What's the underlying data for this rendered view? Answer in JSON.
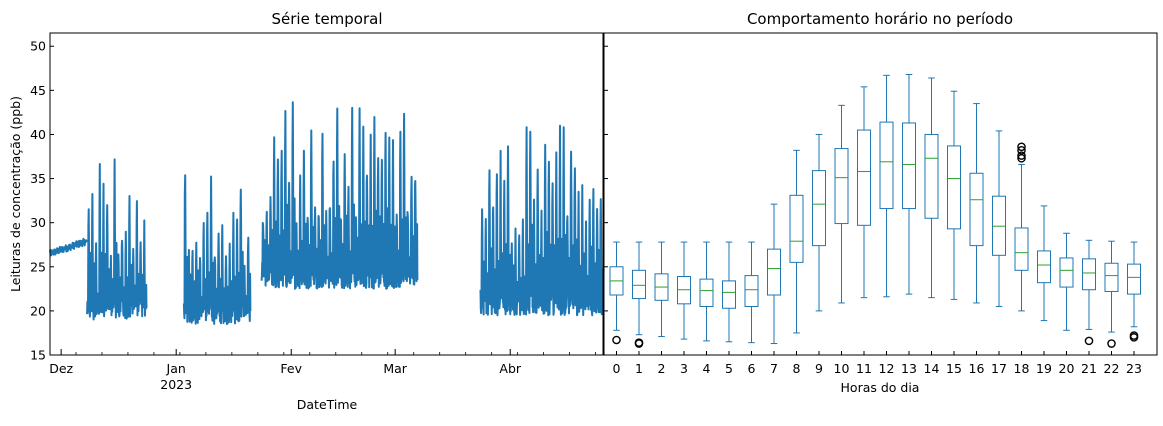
{
  "chart_data": [
    {
      "type": "line",
      "title": "Série temporal",
      "xlabel": "DateTime",
      "ylabel": "Leituras de concentração (ppb)",
      "ylim": [
        15,
        51.5
      ],
      "yticks": [
        15,
        20,
        25,
        30,
        35,
        40,
        45,
        50
      ],
      "xlim": [
        "2022-11-28",
        "2023-04-26"
      ],
      "xticks": [
        {
          "date": "2022-12-01",
          "label": "Dez",
          "sublabel": ""
        },
        {
          "date": "2023-01-01",
          "label": "Jan",
          "sublabel": "2023"
        },
        {
          "date": "2023-02-01",
          "label": "Fev",
          "sublabel": ""
        },
        {
          "date": "2023-03-01",
          "label": "Mar",
          "sublabel": ""
        },
        {
          "date": "2023-04-01",
          "label": "Abr",
          "sublabel": ""
        }
      ],
      "color": "#1f77b4",
      "segments": [
        {
          "start": "2022-11-28",
          "end": "2022-12-08",
          "base": 26.5,
          "amp": 0.4,
          "rise": 1.4
        },
        {
          "start": "2022-12-08",
          "end": "2022-12-24",
          "base": 20.5,
          "amp": 16,
          "rise": 0
        },
        {
          "start": "2023-01-03",
          "end": "2023-01-21",
          "base": 20,
          "amp": 17,
          "rise": 0
        },
        {
          "start": "2023-01-24",
          "end": "2023-03-07",
          "base": 24,
          "amp": 19,
          "rise": 0
        },
        {
          "start": "2023-03-24",
          "end": "2023-04-26",
          "base": 21,
          "amp": 21,
          "rise": 0
        }
      ]
    },
    {
      "type": "box",
      "title": "Comportamento horário no período",
      "xlabel": "Horas do dia",
      "ylabel": "",
      "ylim": [
        15,
        51.5
      ],
      "box_color": "#1f77b4",
      "median_color": "#2ca02c",
      "categories": [
        "0",
        "1",
        "2",
        "3",
        "4",
        "5",
        "6",
        "7",
        "8",
        "9",
        "10",
        "11",
        "12",
        "13",
        "14",
        "15",
        "16",
        "17",
        "18",
        "19",
        "20",
        "21",
        "22",
        "23"
      ],
      "boxes": [
        {
          "whislo": 17.8,
          "q1": 21.8,
          "med": 23.4,
          "q3": 25.0,
          "whishi": 27.8,
          "fliers": [
            16.7
          ]
        },
        {
          "whislo": 17.3,
          "q1": 21.4,
          "med": 22.9,
          "q3": 24.6,
          "whishi": 27.8,
          "fliers": [
            16.4,
            16.3
          ]
        },
        {
          "whislo": 17.1,
          "q1": 21.2,
          "med": 22.7,
          "q3": 24.2,
          "whishi": 27.8,
          "fliers": []
        },
        {
          "whislo": 16.8,
          "q1": 20.8,
          "med": 22.4,
          "q3": 23.9,
          "whishi": 27.8,
          "fliers": []
        },
        {
          "whislo": 16.6,
          "q1": 20.5,
          "med": 22.3,
          "q3": 23.6,
          "whishi": 27.8,
          "fliers": []
        },
        {
          "whislo": 16.5,
          "q1": 20.3,
          "med": 22.1,
          "q3": 23.4,
          "whishi": 27.8,
          "fliers": []
        },
        {
          "whislo": 16.4,
          "q1": 20.5,
          "med": 22.4,
          "q3": 24.0,
          "whishi": 27.8,
          "fliers": []
        },
        {
          "whislo": 16.3,
          "q1": 21.8,
          "med": 24.8,
          "q3": 27.0,
          "whishi": 32.1,
          "fliers": []
        },
        {
          "whislo": 17.5,
          "q1": 25.5,
          "med": 27.9,
          "q3": 33.1,
          "whishi": 38.2,
          "fliers": []
        },
        {
          "whislo": 20.0,
          "q1": 27.4,
          "med": 32.1,
          "q3": 35.9,
          "whishi": 40.0,
          "fliers": []
        },
        {
          "whislo": 20.9,
          "q1": 29.9,
          "med": 35.1,
          "q3": 38.4,
          "whishi": 43.3,
          "fliers": []
        },
        {
          "whislo": 21.5,
          "q1": 29.7,
          "med": 35.8,
          "q3": 40.5,
          "whishi": 45.4,
          "fliers": []
        },
        {
          "whislo": 21.6,
          "q1": 31.6,
          "med": 36.9,
          "q3": 41.4,
          "whishi": 46.7,
          "fliers": []
        },
        {
          "whislo": 21.9,
          "q1": 31.6,
          "med": 36.6,
          "q3": 41.3,
          "whishi": 46.8,
          "fliers": []
        },
        {
          "whislo": 21.5,
          "q1": 30.5,
          "med": 37.3,
          "q3": 40.0,
          "whishi": 46.4,
          "fliers": []
        },
        {
          "whislo": 21.3,
          "q1": 29.3,
          "med": 35.0,
          "q3": 38.7,
          "whishi": 44.9,
          "fliers": []
        },
        {
          "whislo": 20.9,
          "q1": 27.4,
          "med": 32.6,
          "q3": 35.6,
          "whishi": 43.5,
          "fliers": []
        },
        {
          "whislo": 20.5,
          "q1": 26.3,
          "med": 29.6,
          "q3": 33.0,
          "whishi": 40.4,
          "fliers": []
        },
        {
          "whislo": 20.0,
          "q1": 24.6,
          "med": 26.6,
          "q3": 29.4,
          "whishi": 36.6,
          "fliers": [
            38.6,
            38.2,
            37.6,
            37.3
          ]
        },
        {
          "whislo": 18.9,
          "q1": 23.2,
          "med": 25.2,
          "q3": 26.8,
          "whishi": 31.9,
          "fliers": []
        },
        {
          "whislo": 17.8,
          "q1": 22.7,
          "med": 24.6,
          "q3": 26.0,
          "whishi": 28.8,
          "fliers": []
        },
        {
          "whislo": 17.9,
          "q1": 22.4,
          "med": 24.3,
          "q3": 25.9,
          "whishi": 28.0,
          "fliers": [
            16.6
          ]
        },
        {
          "whislo": 17.6,
          "q1": 22.2,
          "med": 24.0,
          "q3": 25.4,
          "whishi": 27.9,
          "fliers": [
            16.3
          ]
        },
        {
          "whislo": 18.2,
          "q1": 21.9,
          "med": 23.8,
          "q3": 25.3,
          "whishi": 27.8,
          "fliers": [
            17.2,
            17.0
          ]
        }
      ]
    }
  ]
}
